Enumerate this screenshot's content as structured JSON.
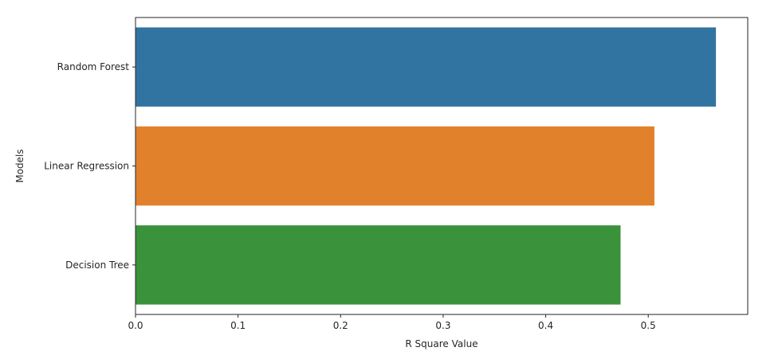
{
  "chart_data": {
    "type": "bar",
    "orientation": "horizontal",
    "categories": [
      "Random Forest",
      "Linear Regression",
      "Decision Tree"
    ],
    "values": [
      0.566,
      0.506,
      0.473
    ],
    "colors": [
      "#3274a1",
      "#e1812c",
      "#3a923a"
    ],
    "xlabel": "R Square Value",
    "ylabel": "Models",
    "xlim": [
      0.0,
      0.597
    ],
    "xticks": [
      {
        "value": 0.0,
        "label": "0.0"
      },
      {
        "value": 0.1,
        "label": "0.1"
      },
      {
        "value": 0.2,
        "label": "0.2"
      },
      {
        "value": 0.3,
        "label": "0.3"
      },
      {
        "value": 0.4,
        "label": "0.4"
      },
      {
        "value": 0.5,
        "label": "0.5"
      }
    ],
    "grid": false,
    "legend": "none"
  }
}
